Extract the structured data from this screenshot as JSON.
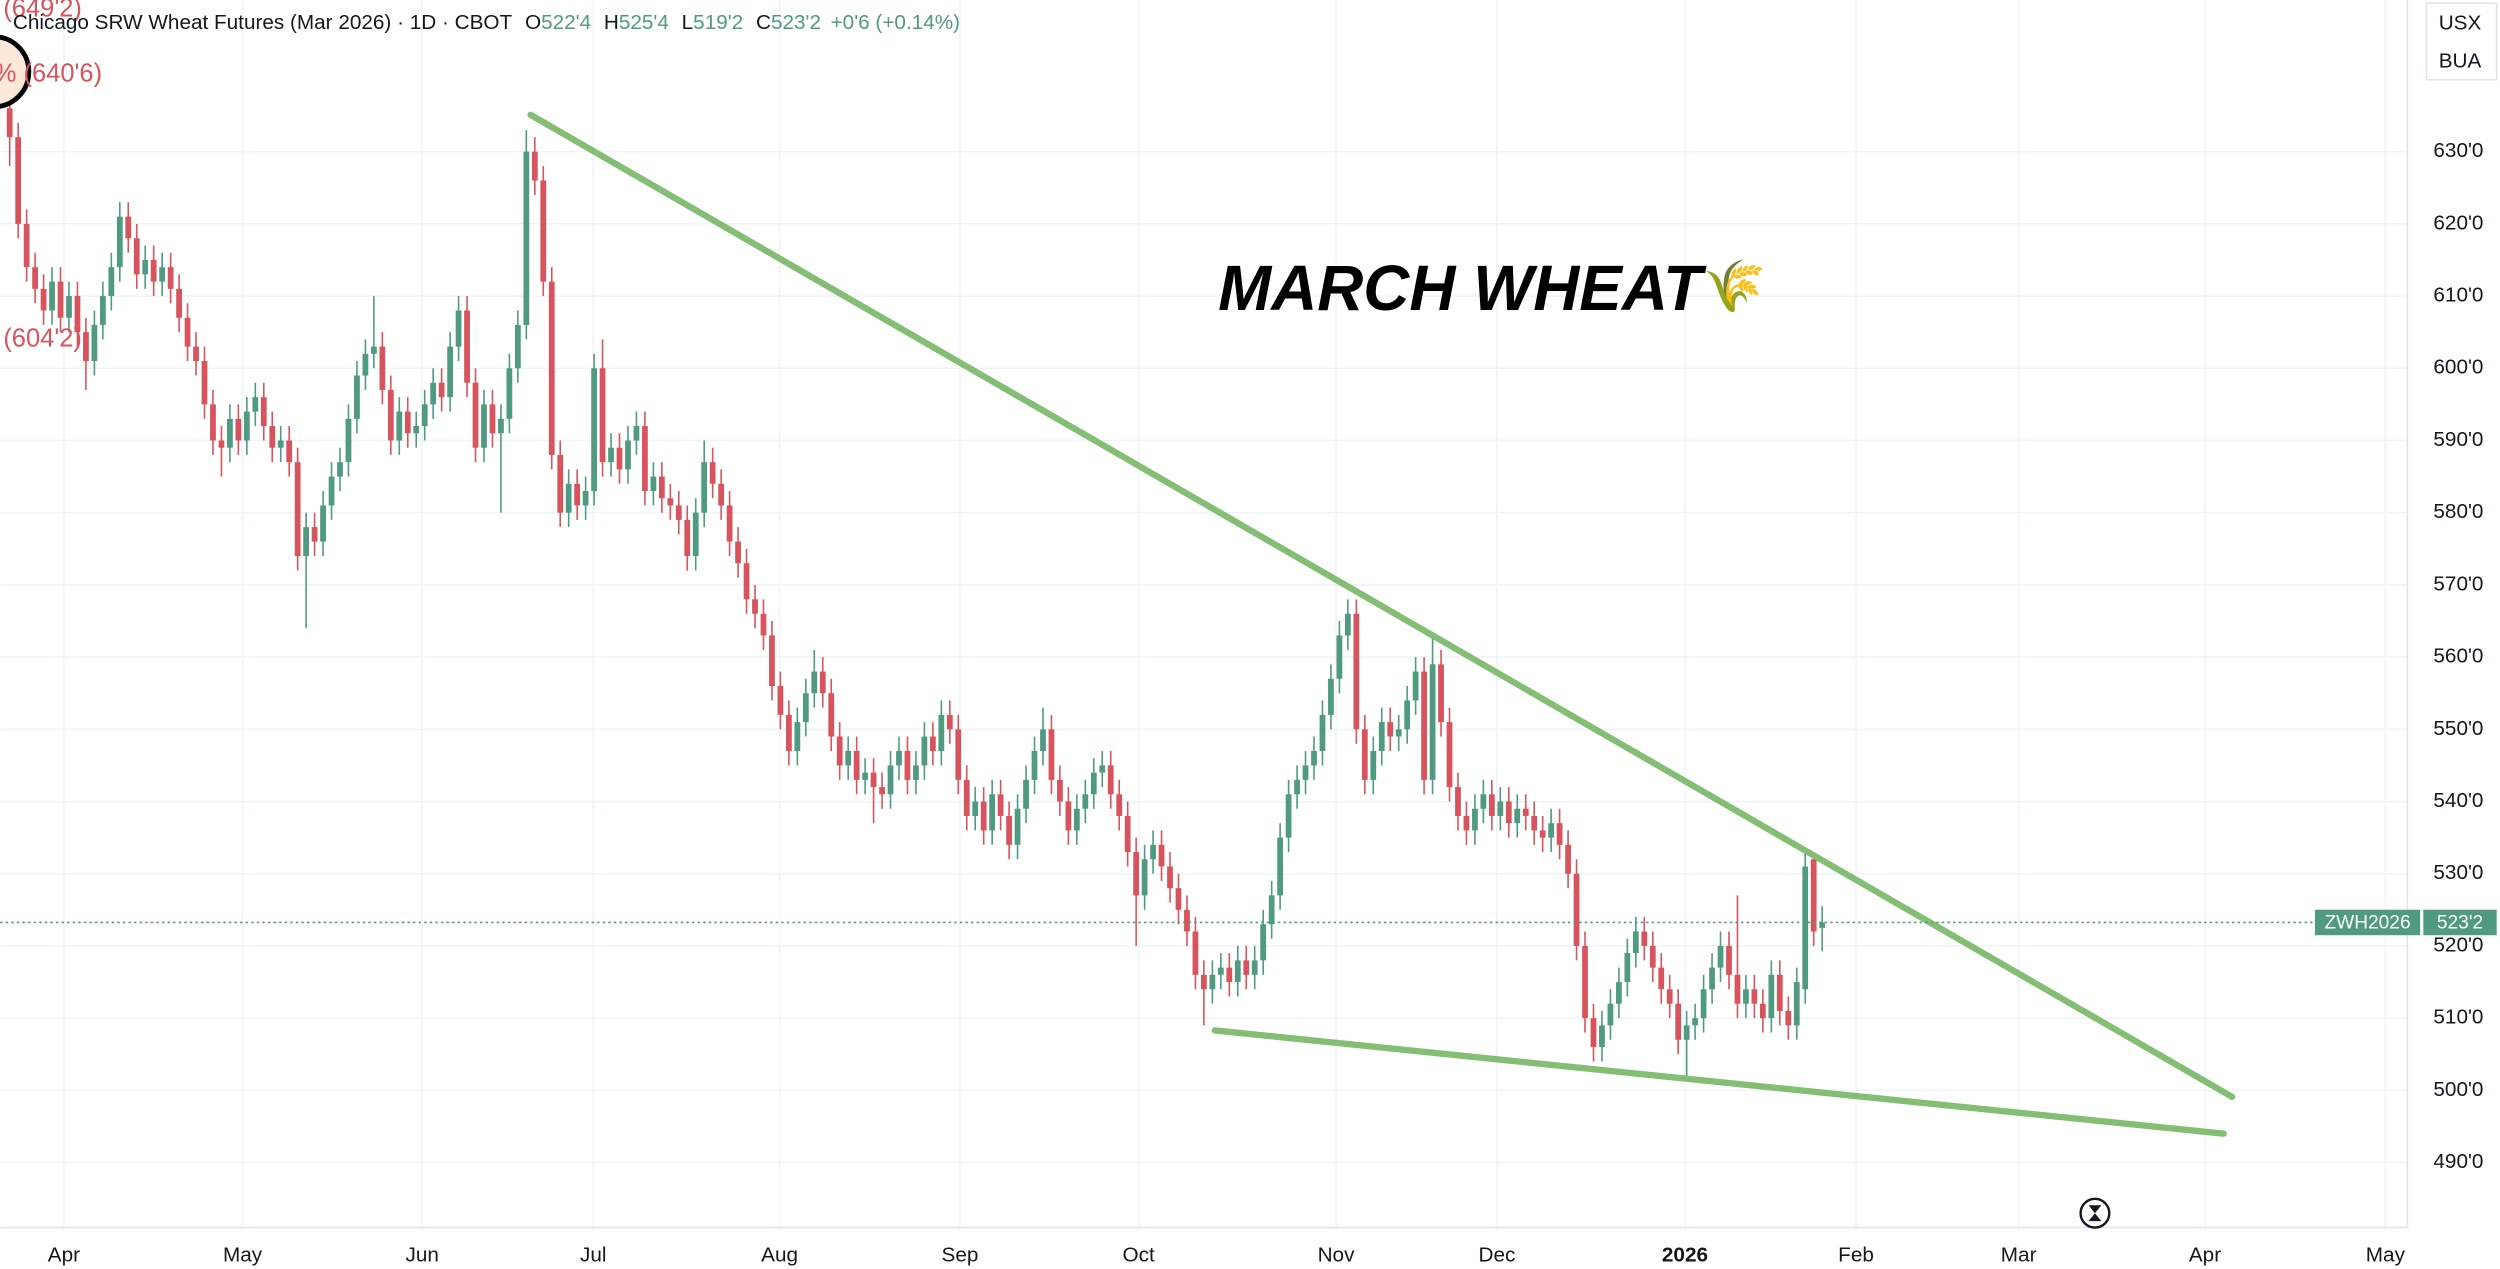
{
  "chart_data": {
    "type": "candlestick",
    "header": {
      "title": "Chicago SRW Wheat Futures (Mar 2026) · 1D · CBOT",
      "o": "O",
      "open": "522'4",
      "h": "H",
      "high": "525'4",
      "l": "L",
      "low": "519'2",
      "c": "C",
      "close": "523'2",
      "change": "+0'6 (+0.14%)"
    },
    "corner_labels": [
      "USX",
      "BUA"
    ],
    "annotation": "MARCH WHEAT",
    "annotation_icon": "🌾",
    "left_labels": [
      "(649'2)",
      "% (640'6)",
      "(604'2)"
    ],
    "up_color": "#4f9a80",
    "down_color": "#d8545c",
    "trendline_color": "#84bd74",
    "grid": true,
    "xlim": [
      -1.13,
      283.1
    ],
    "xticks": [
      {
        "value": 6.4,
        "label": "Apr"
      },
      {
        "value": 27.5,
        "label": "May"
      },
      {
        "value": 48.7,
        "label": "Jun"
      },
      {
        "value": 68.9,
        "label": "Jul"
      },
      {
        "value": 90.9,
        "label": "Aug"
      },
      {
        "value": 112.2,
        "label": "Sep"
      },
      {
        "value": 133.3,
        "label": "Oct"
      },
      {
        "value": 156.6,
        "label": "Nov"
      },
      {
        "value": 175.6,
        "label": "Dec"
      },
      {
        "value": 197.8,
        "label": "2026"
      },
      {
        "value": 218,
        "label": "Feb"
      },
      {
        "value": 237.2,
        "label": "Mar"
      },
      {
        "value": 259.2,
        "label": "Apr"
      },
      {
        "value": 280.5,
        "label": "May"
      }
    ],
    "ylim": [
      481,
      651
    ],
    "yticks": [
      {
        "value": 490,
        "label": "490'0"
      },
      {
        "value": 500,
        "label": "500'0"
      },
      {
        "value": 510,
        "label": "510'0"
      },
      {
        "value": 520,
        "label": "520'0"
      },
      {
        "value": 530,
        "label": "530'0"
      },
      {
        "value": 540,
        "label": "540'0"
      },
      {
        "value": 550,
        "label": "550'0"
      },
      {
        "value": 560,
        "label": "560'0"
      },
      {
        "value": 570,
        "label": "570'0"
      },
      {
        "value": 580,
        "label": "580'0"
      },
      {
        "value": 590,
        "label": "590'0"
      },
      {
        "value": 600,
        "label": "600'0"
      },
      {
        "value": 610,
        "label": "610'0"
      },
      {
        "value": 620,
        "label": "620'0"
      },
      {
        "value": 630,
        "label": "630'0"
      }
    ],
    "last_price": {
      "symbol": "ZWH2026",
      "value": 523.25,
      "label": "523'2"
    },
    "trendlines": [
      {
        "points": [
          [
            61.5,
            635.1
          ],
          [
            262.4,
            499.1
          ]
        ]
      },
      {
        "points": [
          [
            142.3,
            508.3
          ],
          [
            261.4,
            494.0
          ]
        ]
      }
    ],
    "candles": [
      [
        636,
        638,
        628,
        632
      ],
      [
        632,
        634,
        618,
        620
      ],
      [
        620,
        622,
        612,
        614
      ],
      [
        614,
        616,
        609,
        611
      ],
      [
        611,
        613,
        606,
        608
      ],
      [
        608,
        614,
        606,
        612
      ],
      [
        612,
        614,
        605,
        607
      ],
      [
        607,
        612,
        605,
        610
      ],
      [
        610,
        612,
        603,
        605
      ],
      [
        605,
        607,
        597,
        601
      ],
      [
        601,
        608,
        599,
        606
      ],
      [
        606,
        612,
        604,
        610
      ],
      [
        610,
        616,
        608,
        614
      ],
      [
        614,
        623,
        612,
        621
      ],
      [
        621,
        623,
        616,
        618
      ],
      [
        618,
        620,
        611,
        613
      ],
      [
        613,
        617,
        611,
        615
      ],
      [
        615,
        617,
        610,
        612
      ],
      [
        612,
        616,
        610,
        614
      ],
      [
        614,
        616,
        609,
        611
      ],
      [
        611,
        613,
        605,
        607
      ],
      [
        607,
        609,
        601,
        603
      ],
      [
        603,
        605,
        599,
        601
      ],
      [
        601,
        603,
        593,
        595
      ],
      [
        595,
        597,
        588,
        590
      ],
      [
        590,
        592,
        585,
        589
      ],
      [
        589,
        595,
        587,
        593
      ],
      [
        593,
        595,
        588,
        590
      ],
      [
        590,
        596,
        588,
        594
      ],
      [
        594,
        598,
        592,
        596
      ],
      [
        596,
        598,
        590,
        592
      ],
      [
        592,
        594,
        587,
        589
      ],
      [
        589,
        592,
        587,
        590
      ],
      [
        590,
        592,
        585,
        587
      ],
      [
        587,
        589,
        572,
        574
      ],
      [
        574,
        580,
        564,
        578
      ],
      [
        578,
        580,
        574,
        576
      ],
      [
        576,
        583,
        574,
        581
      ],
      [
        581,
        587,
        579,
        585
      ],
      [
        585,
        589,
        583,
        587
      ],
      [
        587,
        595,
        585,
        593
      ],
      [
        593,
        601,
        591,
        599
      ],
      [
        599,
        604,
        597,
        602
      ],
      [
        602,
        610,
        600,
        603
      ],
      [
        603,
        605,
        595,
        597
      ],
      [
        597,
        599,
        588,
        590
      ],
      [
        590,
        596,
        588,
        594
      ],
      [
        594,
        596,
        589,
        591
      ],
      [
        591,
        594,
        589,
        592
      ],
      [
        592,
        597,
        590,
        595
      ],
      [
        595,
        600,
        593,
        598
      ],
      [
        598,
        600,
        594,
        596
      ],
      [
        596,
        605,
        594,
        603
      ],
      [
        603,
        610,
        601,
        608
      ],
      [
        608,
        610,
        596,
        598
      ],
      [
        598,
        600,
        587,
        589
      ],
      [
        589,
        597,
        587,
        595
      ],
      [
        595,
        597,
        589,
        591
      ],
      [
        591,
        595,
        580,
        593
      ],
      [
        593,
        602,
        591,
        600
      ],
      [
        600,
        608,
        598,
        606
      ],
      [
        606,
        633,
        604,
        630
      ],
      [
        630,
        632,
        624,
        626
      ],
      [
        626,
        628,
        610,
        612
      ],
      [
        612,
        614,
        586,
        588
      ],
      [
        588,
        590,
        578,
        580
      ],
      [
        580,
        586,
        578,
        584
      ],
      [
        584,
        586,
        579,
        581
      ],
      [
        581,
        585,
        579,
        583
      ],
      [
        583,
        602,
        581,
        600
      ],
      [
        600,
        604,
        585,
        587
      ],
      [
        587,
        591,
        585,
        589
      ],
      [
        589,
        591,
        584,
        586
      ],
      [
        586,
        592,
        584,
        590
      ],
      [
        590,
        594,
        588,
        592
      ],
      [
        592,
        594,
        581,
        583
      ],
      [
        583,
        587,
        581,
        585
      ],
      [
        585,
        587,
        580,
        582
      ],
      [
        582,
        584,
        579,
        581
      ],
      [
        581,
        583,
        577,
        579
      ],
      [
        579,
        581,
        572,
        574
      ],
      [
        574,
        582,
        572,
        580
      ],
      [
        580,
        590,
        578,
        587
      ],
      [
        587,
        589,
        582,
        584
      ],
      [
        584,
        586,
        579,
        581
      ],
      [
        581,
        583,
        574,
        576
      ],
      [
        576,
        578,
        571,
        573
      ],
      [
        573,
        575,
        566,
        568
      ],
      [
        568,
        570,
        564,
        566
      ],
      [
        566,
        568,
        561,
        563
      ],
      [
        563,
        565,
        554,
        556
      ],
      [
        556,
        558,
        550,
        552
      ],
      [
        552,
        554,
        545,
        547
      ],
      [
        547,
        553,
        545,
        551
      ],
      [
        551,
        557,
        549,
        555
      ],
      [
        555,
        561,
        553,
        558
      ],
      [
        558,
        560,
        553,
        555
      ],
      [
        555,
        557,
        547,
        549
      ],
      [
        549,
        551,
        543,
        545
      ],
      [
        545,
        549,
        543,
        547
      ],
      [
        547,
        549,
        541,
        543
      ],
      [
        543,
        546,
        541,
        544
      ],
      [
        544,
        546,
        537,
        542
      ],
      [
        542,
        544,
        539,
        541
      ],
      [
        541,
        547,
        539,
        545
      ],
      [
        545,
        549,
        543,
        547
      ],
      [
        547,
        549,
        541,
        543
      ],
      [
        543,
        547,
        541,
        545
      ],
      [
        545,
        551,
        543,
        549
      ],
      [
        549,
        551,
        545,
        547
      ],
      [
        547,
        554,
        545,
        552
      ],
      [
        552,
        554,
        548,
        550
      ],
      [
        550,
        552,
        541,
        543
      ],
      [
        543,
        545,
        536,
        538
      ],
      [
        538,
        542,
        536,
        540
      ],
      [
        540,
        542,
        534,
        536
      ],
      [
        536,
        543,
        534,
        541
      ],
      [
        541,
        543,
        536,
        538
      ],
      [
        538,
        540,
        532,
        534
      ],
      [
        534,
        541,
        532,
        539
      ],
      [
        539,
        545,
        537,
        543
      ],
      [
        543,
        549,
        541,
        547
      ],
      [
        547,
        553,
        545,
        550
      ],
      [
        550,
        552,
        541,
        543
      ],
      [
        543,
        545,
        538,
        540
      ],
      [
        540,
        542,
        534,
        536
      ],
      [
        536,
        541,
        534,
        539
      ],
      [
        539,
        543,
        537,
        541
      ],
      [
        541,
        546,
        539,
        544
      ],
      [
        544,
        547,
        542,
        545
      ],
      [
        545,
        547,
        539,
        541
      ],
      [
        541,
        543,
        536,
        538
      ],
      [
        538,
        540,
        531,
        533
      ],
      [
        533,
        535,
        520,
        527
      ],
      [
        527,
        534,
        525,
        532
      ],
      [
        532,
        536,
        530,
        534
      ],
      [
        534,
        536,
        529,
        531
      ],
      [
        531,
        533,
        526,
        528
      ],
      [
        528,
        530,
        523,
        525
      ],
      [
        525,
        527,
        520,
        522
      ],
      [
        522,
        524,
        514,
        516
      ],
      [
        516,
        518,
        509,
        514
      ],
      [
        514,
        518,
        512,
        516
      ],
      [
        516,
        519,
        514,
        517
      ],
      [
        517,
        519,
        513,
        515
      ],
      [
        515,
        520,
        513,
        518
      ],
      [
        518,
        520,
        514,
        516
      ],
      [
        516,
        520,
        514,
        518
      ],
      [
        518,
        525,
        516,
        523
      ],
      [
        523,
        529,
        521,
        527
      ],
      [
        527,
        537,
        525,
        535
      ],
      [
        535,
        543,
        533,
        541
      ],
      [
        541,
        545,
        539,
        543
      ],
      [
        543,
        547,
        541,
        545
      ],
      [
        545,
        549,
        543,
        547
      ],
      [
        547,
        554,
        545,
        552
      ],
      [
        552,
        559,
        550,
        557
      ],
      [
        557,
        565,
        555,
        563
      ],
      [
        563,
        568,
        561,
        566
      ],
      [
        566,
        568,
        548,
        550
      ],
      [
        550,
        552,
        541,
        543
      ],
      [
        543,
        549,
        541,
        547
      ],
      [
        547,
        553,
        545,
        551
      ],
      [
        551,
        553,
        547,
        549
      ],
      [
        549,
        552,
        547,
        550
      ],
      [
        550,
        556,
        548,
        554
      ],
      [
        554,
        560,
        552,
        558
      ],
      [
        558,
        560,
        541,
        543
      ],
      [
        543,
        563,
        541,
        559
      ],
      [
        559,
        561,
        549,
        551
      ],
      [
        551,
        553,
        540,
        542
      ],
      [
        542,
        544,
        536,
        538
      ],
      [
        538,
        540,
        534,
        536
      ],
      [
        536,
        541,
        534,
        539
      ],
      [
        539,
        543,
        537,
        541
      ],
      [
        541,
        543,
        536,
        538
      ],
      [
        538,
        542,
        536,
        540
      ],
      [
        540,
        542,
        535,
        537
      ],
      [
        537,
        541,
        535,
        539
      ],
      [
        539,
        541,
        536,
        538
      ],
      [
        538,
        540,
        534,
        536
      ],
      [
        536,
        538,
        533,
        535
      ],
      [
        535,
        539,
        533,
        537
      ],
      [
        537,
        539,
        532,
        534
      ],
      [
        534,
        536,
        528,
        530
      ],
      [
        530,
        532,
        518,
        520
      ],
      [
        520,
        522,
        508,
        510
      ],
      [
        510,
        512,
        504,
        506
      ],
      [
        506,
        511,
        504,
        509
      ],
      [
        509,
        514,
        507,
        512
      ],
      [
        512,
        517,
        510,
        515
      ],
      [
        515,
        521,
        513,
        519
      ],
      [
        519,
        524,
        517,
        522
      ],
      [
        522,
        524,
        518,
        520
      ],
      [
        520,
        522,
        515,
        517
      ],
      [
        517,
        519,
        512,
        514
      ],
      [
        514,
        516,
        510,
        512
      ],
      [
        512,
        514,
        505,
        507
      ],
      [
        507,
        511,
        502,
        509
      ],
      [
        509,
        512,
        507,
        510
      ],
      [
        510,
        516,
        508,
        514
      ],
      [
        514,
        519,
        512,
        517
      ],
      [
        517,
        522,
        515,
        520
      ],
      [
        520,
        522,
        514,
        516
      ],
      [
        516,
        527,
        510,
        512
      ],
      [
        512,
        516,
        510,
        514
      ],
      [
        514,
        516,
        510,
        512
      ],
      [
        512,
        514,
        508,
        510
      ],
      [
        510,
        518,
        508,
        516
      ],
      [
        516,
        518,
        509,
        511
      ],
      [
        511,
        513,
        507,
        509
      ],
      [
        509,
        517,
        507,
        515
      ],
      [
        514,
        533,
        512,
        531
      ],
      [
        532,
        533,
        520,
        522
      ],
      [
        522.5,
        525.5,
        519.25,
        523.25
      ]
    ]
  }
}
